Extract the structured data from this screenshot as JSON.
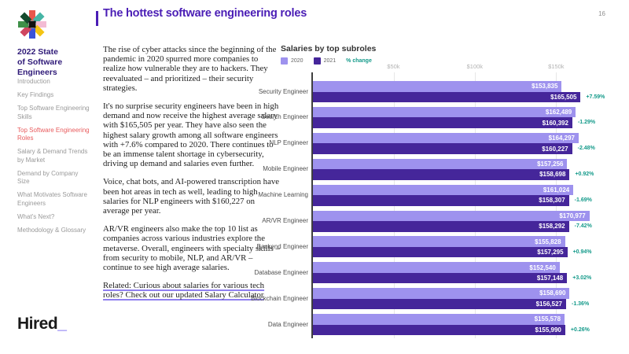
{
  "page": {
    "number": "16"
  },
  "colors": {
    "title_purple": "#4a1db5",
    "sidebar_heading_purple": "#2f1a78",
    "nav_gray": "#9a9a9a",
    "nav_active_coral": "#e85c5e",
    "bar_2020": "#9e92ee",
    "bar_2021": "#45269a",
    "pct_teal": "#149a8a",
    "wordmark_black": "#1a1a1a",
    "wordmark_underscore_purple": "#6d5bf0",
    "body_text": "#212121",
    "axis_label_gray": "#b3b3b3",
    "category_label_gray": "#4f4f4f",
    "link_underline_purple": "#8f7ff0"
  },
  "sidebar": {
    "report_title": "2022 State\nof Software\nEngineers",
    "items": [
      {
        "label": "Introduction",
        "active": false
      },
      {
        "label": "Key Findings",
        "active": false
      },
      {
        "label": "Top Software Engineering Skills",
        "active": false
      },
      {
        "label": "Top Software Engineering Roles",
        "active": true
      },
      {
        "label": "Salary & Demand Trends by Market",
        "active": false
      },
      {
        "label": "Demand by Company Size",
        "active": false
      },
      {
        "label": "What Motivates Software Engineers",
        "active": false
      },
      {
        "label": "What's Next?",
        "active": false
      },
      {
        "label": "Methodology & Glossary",
        "active": false
      }
    ],
    "wordmark_text": "Hired",
    "wordmark_underscore": "_"
  },
  "main": {
    "title": "The hottest software engineering roles",
    "paragraphs": [
      "The rise of cyber attacks since the beginning of the pandemic in 2020 spurred more companies to realize how vulnerable they are to hackers. They reevaluated – and prioritized – their security strategies.",
      "It's no surprise security engineers have been in high demand and now receive the highest average salary with $165,505 per year. They have also seen the highest salary growth among all software engineers with +7.6% compared to 2020. There continues to be an immense talent shortage in cybersecurity, driving up demand and salaries even further.",
      "Voice, chat bots, and AI-powered transcription have been hot areas in tech as well, leading to high salaries for NLP engineers with $160,227 on average per year.",
      "AR/VR engineers also make the top 10 list as companies across various industries explore the metaverse. Overall, engineers with specialty skills – from security to mobile, NLP, and AR/VR – continue to see high average salaries."
    ],
    "related_link": "Related: Curious about salaries for various tech roles? Check out our updated Salary Calculator"
  },
  "chart_data": {
    "type": "bar",
    "orientation": "horizontal",
    "title": "Salaries by top subroles",
    "legend": [
      "2020",
      "2021",
      "% change"
    ],
    "legend_position": "top-left",
    "grid": true,
    "categories": [
      "Security Engineer",
      "Search Engineer",
      "NLP Engineer",
      "Mobile Engineer",
      "Machine Learning",
      "AR/VR Engineer",
      "Backend Engineer",
      "Database Engineer",
      "Blockchain Engineer",
      "Data Engineer"
    ],
    "series": [
      {
        "name": "2020",
        "color": "#9e92ee",
        "values": [
          153835,
          162489,
          164297,
          157256,
          161024,
          170977,
          155828,
          152540,
          158690,
          155578
        ]
      },
      {
        "name": "2021",
        "color": "#45269a",
        "values": [
          165505,
          160392,
          160227,
          158698,
          158307,
          158292,
          157295,
          157148,
          156527,
          155990
        ]
      }
    ],
    "pct_change": [
      "+7.59%",
      "-1.29%",
      "-2.48%",
      "+0.92%",
      "-1.69%",
      "-7.42%",
      "+0.94%",
      "+3.02%",
      "-1.36%",
      "+0.26%"
    ],
    "x_ticks": [
      {
        "label": "$50k",
        "value": 50000
      },
      {
        "label": "$100k",
        "value": 100000
      },
      {
        "label": "$150k",
        "value": 150000
      }
    ],
    "xlim": [
      0,
      175000
    ],
    "value_format": "$#,###"
  }
}
